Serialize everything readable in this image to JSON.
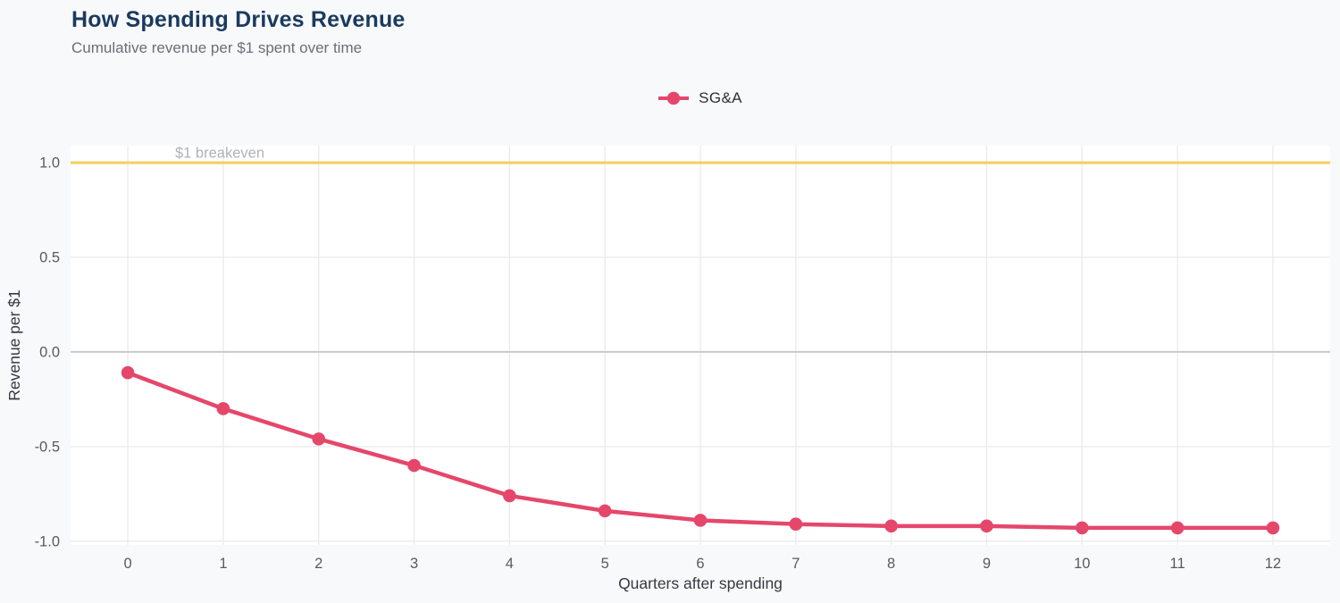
{
  "header": {},
  "chart_data": {
    "type": "line",
    "title": "How Spending Drives Revenue",
    "subtitle": "Cumulative revenue per $1 spent over time",
    "xlabel": "Quarters after spending",
    "ylabel": "Revenue per $1",
    "x": [
      0,
      1,
      2,
      3,
      4,
      5,
      6,
      7,
      8,
      9,
      10,
      11,
      12
    ],
    "series": [
      {
        "name": "SG&A",
        "color": "#e5476b",
        "values": [
          -0.11,
          -0.3,
          -0.46,
          -0.6,
          -0.76,
          -0.84,
          -0.89,
          -0.91,
          -0.92,
          -0.92,
          -0.93,
          -0.93,
          -0.93
        ]
      }
    ],
    "xticks": {
      "values": [
        0,
        1,
        2,
        3,
        4,
        5,
        6,
        7,
        8,
        9,
        10,
        11,
        12
      ],
      "labels": [
        "0",
        "1",
        "2",
        "3",
        "4",
        "5",
        "6",
        "7",
        "8",
        "9",
        "10",
        "11",
        "12"
      ]
    },
    "yticks": {
      "values": [
        -1.0,
        -0.5,
        0.0,
        0.5,
        1.0
      ],
      "labels": [
        "-1.0",
        "-0.5",
        "0.0",
        "0.5",
        "1.0"
      ]
    },
    "xlim": [
      -0.6,
      12.6
    ],
    "ylim": [
      -1.02,
      1.09
    ],
    "grid": true,
    "legend_position": "top-center",
    "reference_line": {
      "y": 1.0,
      "label": "$1 breakeven",
      "color": "#f6ce60"
    },
    "zero_line": {
      "y": 0.0,
      "color": "#c8cacd"
    }
  },
  "colors": {
    "page_bg": "#f8f9fb",
    "plot_bg": "#ffffff",
    "grid": "#e9eaec",
    "tick_label": "#565b62",
    "axis_title": "#353a40",
    "ref_label": "#aeb2b8",
    "title": "#1a3a5f",
    "subtitle": "#686f78"
  }
}
